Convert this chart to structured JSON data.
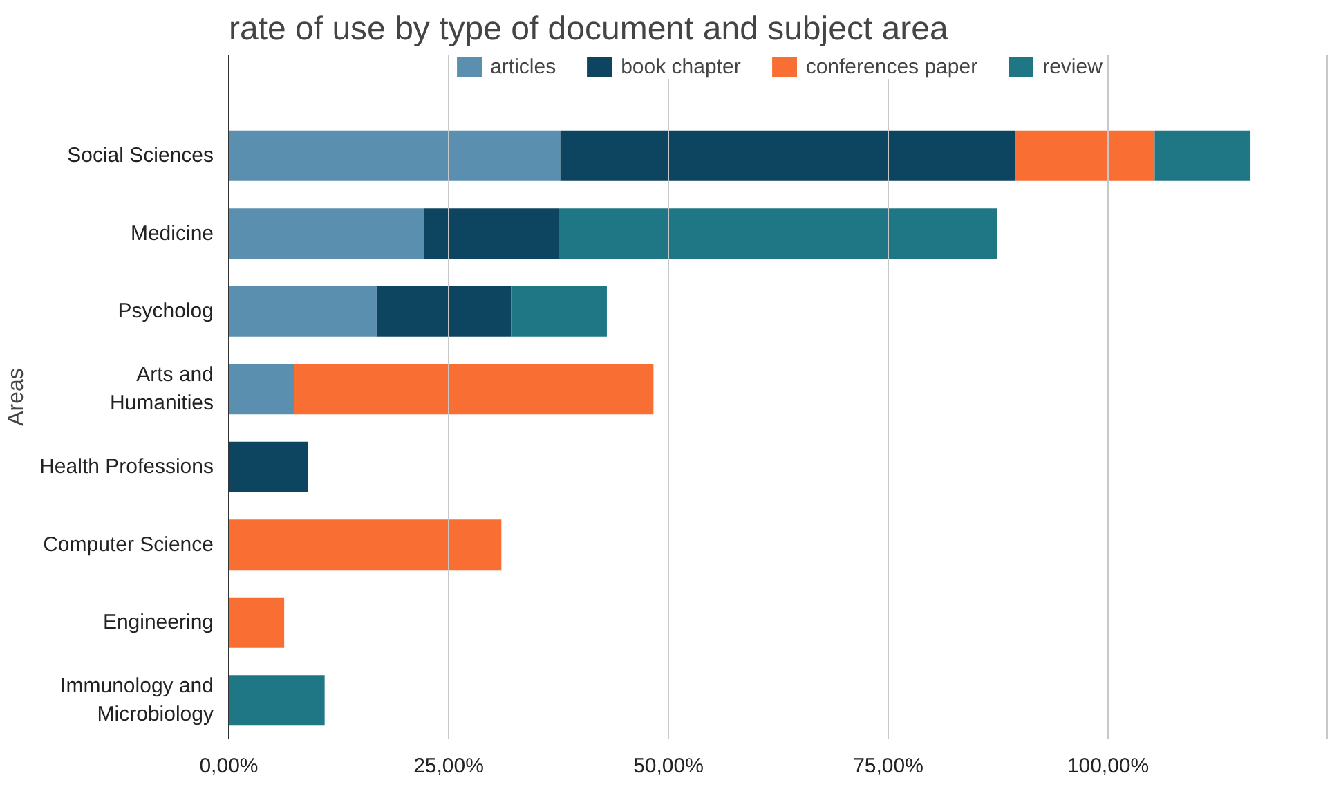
{
  "chart_data": {
    "type": "bar",
    "orientation": "horizontal",
    "stacked": true,
    "title": "rate of use by type of document and subject area",
    "ylabel": "Areas",
    "categories": [
      "Social Sciences",
      "Medicine",
      "Psycholog",
      "Arts and Humanities",
      "Health Professions",
      "Computer Science",
      "Engineering",
      "Immunology and Microbiology"
    ],
    "series": [
      {
        "name": "articles",
        "color": "#5b8fb0",
        "values": [
          37.7,
          22.2,
          16.8,
          7.4,
          null,
          null,
          null,
          null
        ]
      },
      {
        "name": "book chapter",
        "color": "#0d4560",
        "values": [
          51.7,
          15.3,
          15.3,
          null,
          9.0,
          null,
          null,
          null
        ]
      },
      {
        "name": "conferences paper",
        "color": "#f96e32",
        "values": [
          15.9,
          null,
          null,
          40.9,
          null,
          31.0,
          6.3,
          null
        ]
      },
      {
        "name": "review",
        "color": "#1f7684",
        "values": [
          10.9,
          49.9,
          10.9,
          null,
          null,
          null,
          null,
          10.9
        ]
      }
    ],
    "xlim": [
      0,
      125
    ],
    "xticks": [
      {
        "value": 0,
        "label": "0,00%"
      },
      {
        "value": 25,
        "label": "25,00%"
      },
      {
        "value": 50,
        "label": "50,00%"
      },
      {
        "value": 75,
        "label": "75,00%"
      },
      {
        "value": 100,
        "label": "100,00%"
      },
      {
        "value": 125,
        "label": null
      }
    ],
    "grid": "x",
    "legend": "top"
  }
}
